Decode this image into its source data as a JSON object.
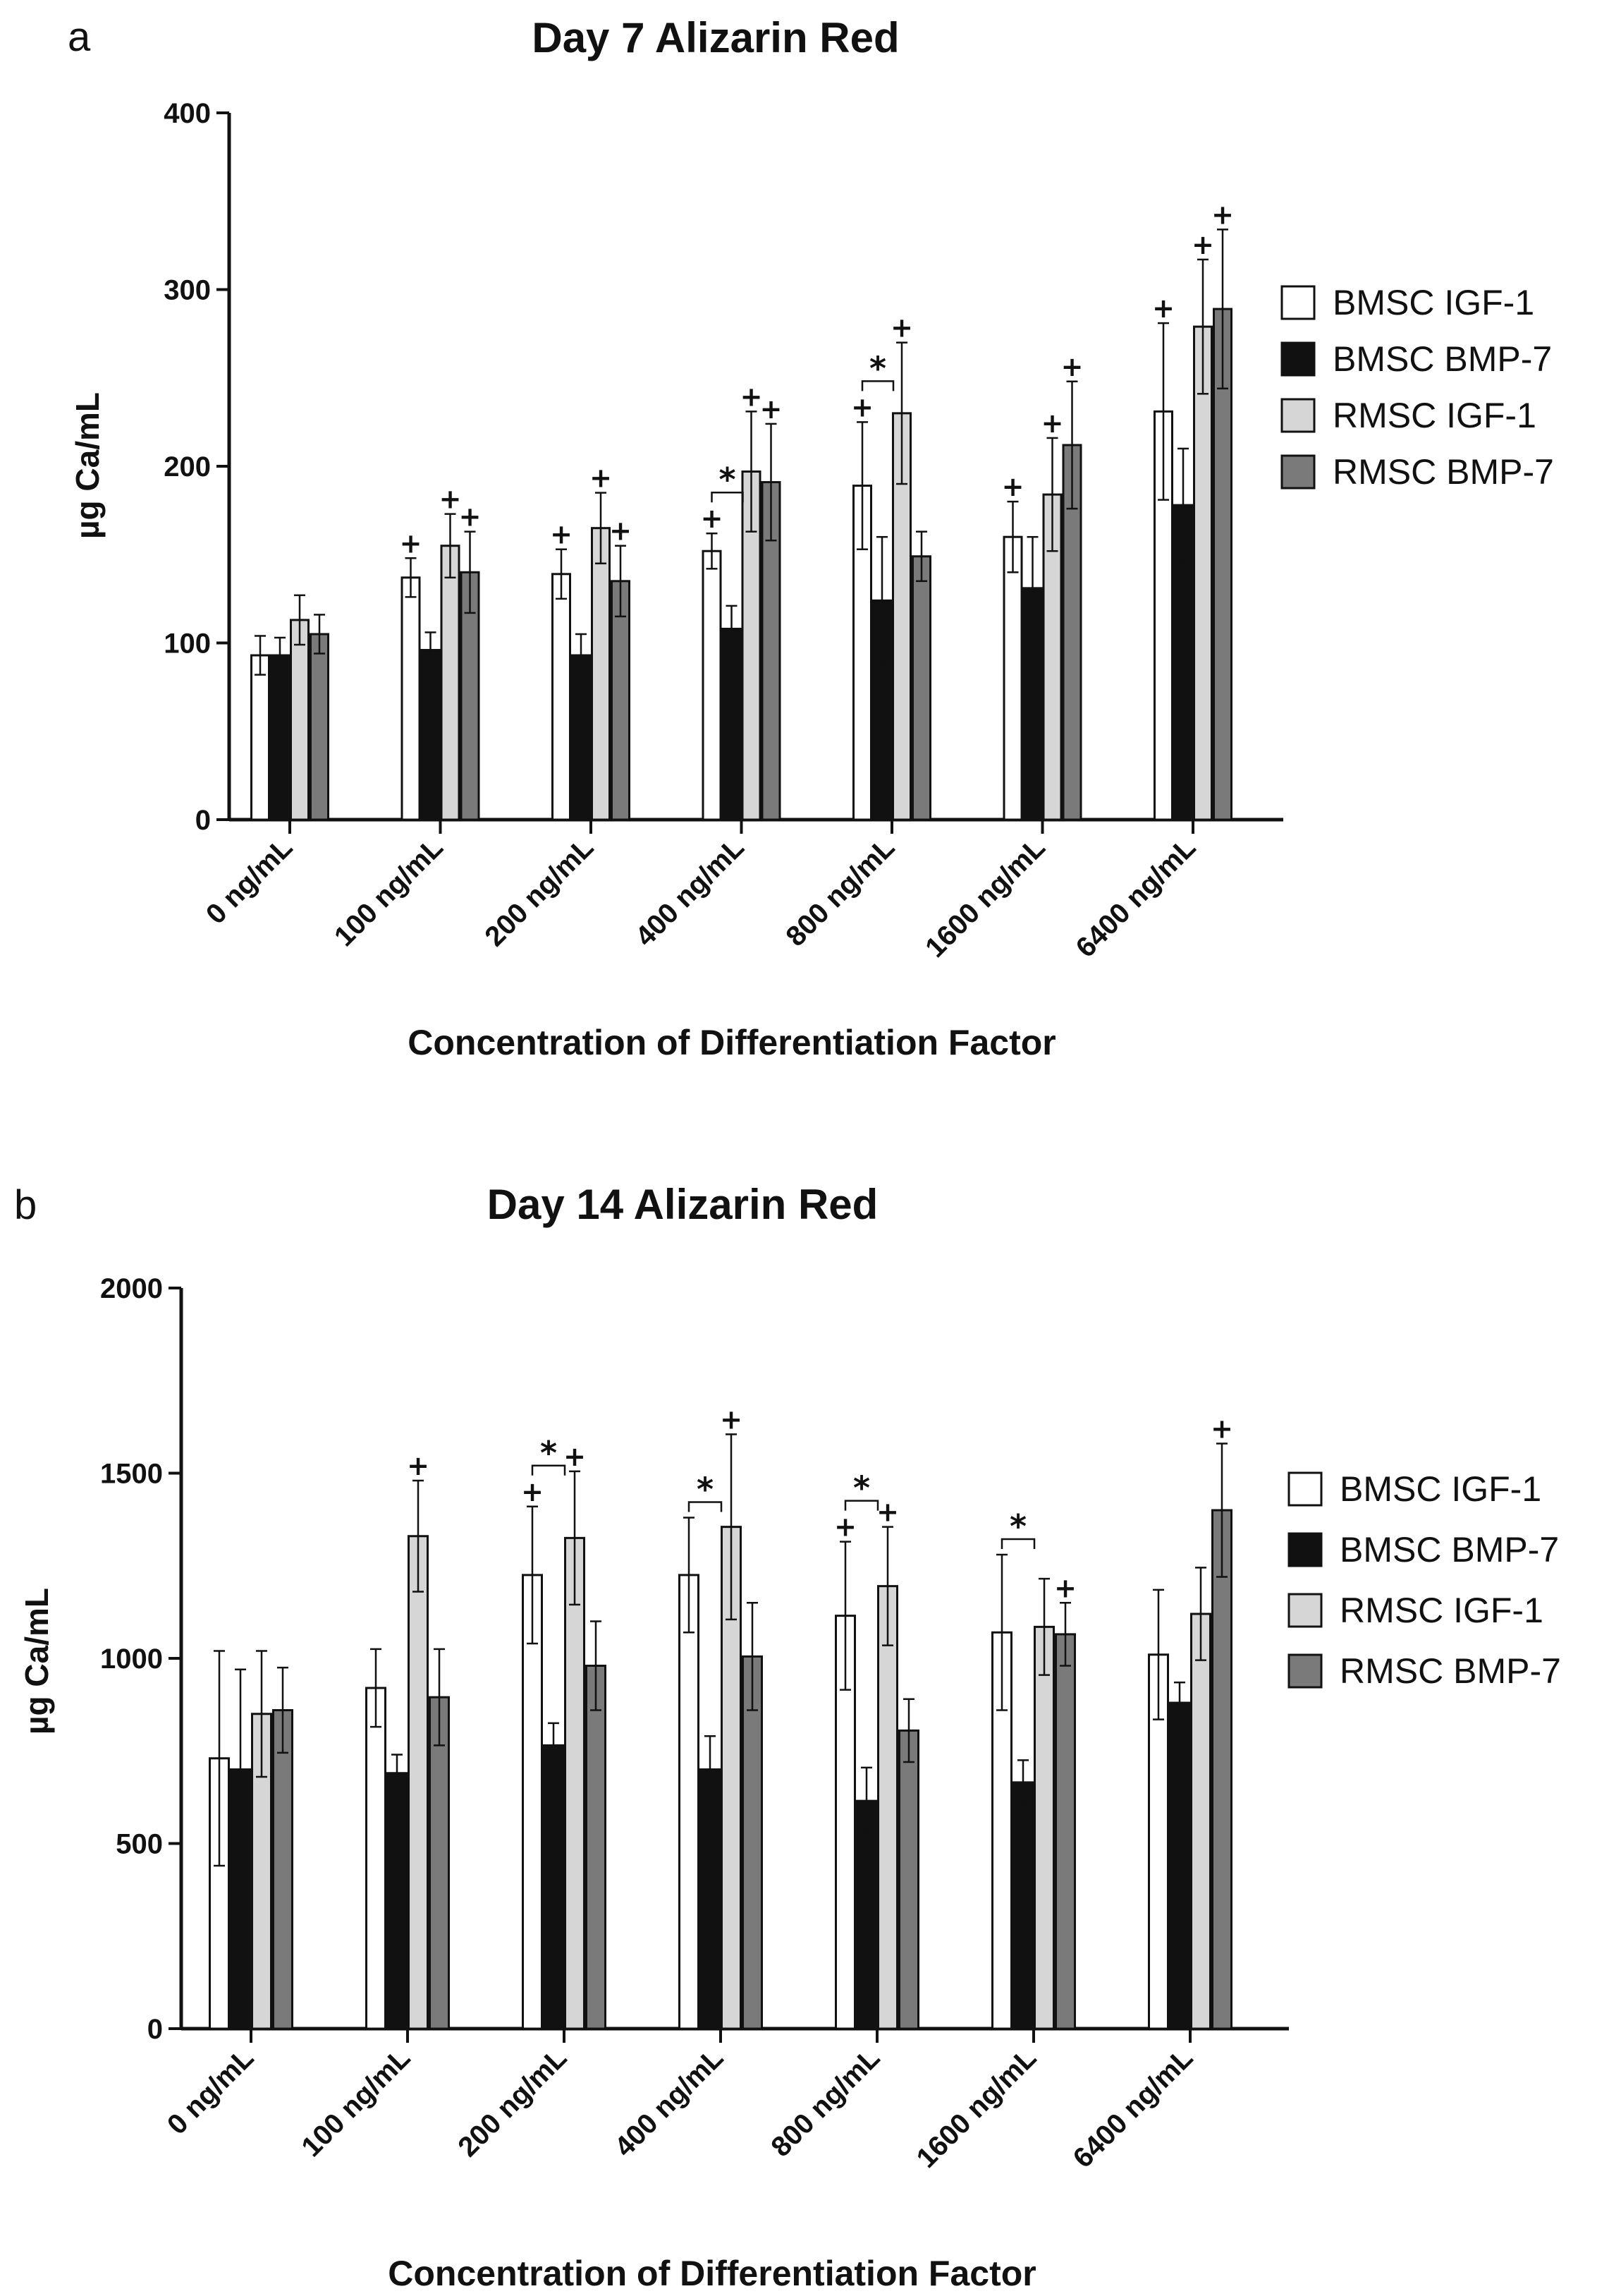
{
  "chart_data": [
    {
      "panel": "a",
      "type": "bar",
      "title": "Day 7 Alizarin Red",
      "xlabel": "Concentration of Differentiation Factor",
      "ylabel": "µg Ca/mL",
      "ylim": [
        0,
        400
      ],
      "yticks": [
        0,
        100,
        200,
        300,
        400
      ],
      "categories": [
        "0 ng/mL",
        "100 ng/mL",
        "200 ng/mL",
        "400 ng/mL",
        "800 ng/mL",
        "1600 ng/mL",
        "6400 ng/mL"
      ],
      "series": [
        {
          "name": "BMSC IGF-1",
          "color": "#ffffff",
          "values": [
            93,
            137,
            139,
            152,
            189,
            160,
            231
          ],
          "errors": [
            11,
            11,
            14,
            10,
            36,
            20,
            50
          ]
        },
        {
          "name": "BMSC BMP-7",
          "color": "#111111",
          "values": [
            93,
            96,
            93,
            108,
            124,
            131,
            178
          ],
          "errors": [
            10,
            10,
            12,
            13,
            36,
            29,
            32
          ]
        },
        {
          "name": "RMSC IGF-1",
          "color": "#d6d6d6",
          "values": [
            113,
            155,
            165,
            197,
            230,
            184,
            279
          ],
          "errors": [
            14,
            18,
            20,
            34,
            40,
            32,
            38
          ]
        },
        {
          "name": "RMSC BMP-7",
          "color": "#7a7a7a",
          "values": [
            105,
            140,
            135,
            191,
            149,
            212,
            289
          ],
          "errors": [
            11,
            23,
            20,
            33,
            14,
            36,
            45
          ]
        }
      ],
      "plus_marks": [
        [
          1,
          0
        ],
        [
          1,
          2
        ],
        [
          1,
          3
        ],
        [
          2,
          0
        ],
        [
          2,
          2
        ],
        [
          2,
          3
        ],
        [
          3,
          0
        ],
        [
          3,
          2
        ],
        [
          3,
          3
        ],
        [
          4,
          0
        ],
        [
          4,
          2
        ],
        [
          5,
          0
        ],
        [
          5,
          2
        ],
        [
          5,
          3
        ],
        [
          6,
          0
        ],
        [
          6,
          2
        ],
        [
          6,
          3
        ]
      ],
      "plus_symbol": "+",
      "sig_brackets": [
        {
          "group": 3,
          "from": 0,
          "to": 1
        },
        {
          "group": 4,
          "from": 0,
          "to": 1
        }
      ],
      "sig_symbol": "*",
      "legend": [
        "BMSC IGF-1",
        "BMSC BMP-7",
        "RMSC IGF-1",
        "RMSC BMP-7"
      ]
    },
    {
      "panel": "b",
      "type": "bar",
      "title": "Day 14 Alizarin Red",
      "xlabel": "Concentration of Differentiation Factor",
      "ylabel": "µg Ca/mL",
      "ylim": [
        0,
        2000
      ],
      "yticks": [
        0,
        500,
        1000,
        1500,
        2000
      ],
      "categories": [
        "0 ng/mL",
        "100 ng/mL",
        "200 ng/mL",
        "400 ng/mL",
        "800 ng/mL",
        "1600 ng/mL",
        "6400 ng/mL"
      ],
      "series": [
        {
          "name": "BMSC IGF-1",
          "color": "#ffffff",
          "values": [
            730,
            920,
            1225,
            1225,
            1115,
            1070,
            1010
          ],
          "errors": [
            290,
            105,
            185,
            155,
            200,
            210,
            175
          ]
        },
        {
          "name": "BMSC BMP-7",
          "color": "#111111",
          "values": [
            700,
            690,
            765,
            700,
            615,
            665,
            880
          ],
          "errors": [
            270,
            50,
            60,
            90,
            90,
            60,
            55
          ]
        },
        {
          "name": "RMSC IGF-1",
          "color": "#d6d6d6",
          "values": [
            850,
            1330,
            1325,
            1355,
            1195,
            1085,
            1120
          ],
          "errors": [
            170,
            150,
            180,
            250,
            160,
            130,
            125
          ]
        },
        {
          "name": "RMSC BMP-7",
          "color": "#7a7a7a",
          "values": [
            860,
            895,
            980,
            1005,
            805,
            1065,
            1400
          ],
          "errors": [
            115,
            130,
            120,
            145,
            85,
            85,
            180
          ]
        }
      ],
      "plus_marks": [
        [
          1,
          2
        ],
        [
          2,
          0
        ],
        [
          2,
          2
        ],
        [
          3,
          2
        ],
        [
          4,
          0
        ],
        [
          4,
          2
        ],
        [
          5,
          3
        ],
        [
          6,
          3
        ]
      ],
      "plus_symbol": "+",
      "sig_brackets": [
        {
          "group": 2,
          "from": 0,
          "to": 1
        },
        {
          "group": 3,
          "from": 0,
          "to": 1
        },
        {
          "group": 4,
          "from": 0,
          "to": 1
        },
        {
          "group": 5,
          "from": 0,
          "to": 1
        }
      ],
      "sig_symbol": "*",
      "legend": [
        "BMSC IGF-1",
        "BMSC BMP-7",
        "RMSC IGF-1",
        "RMSC BMP-7"
      ]
    }
  ]
}
